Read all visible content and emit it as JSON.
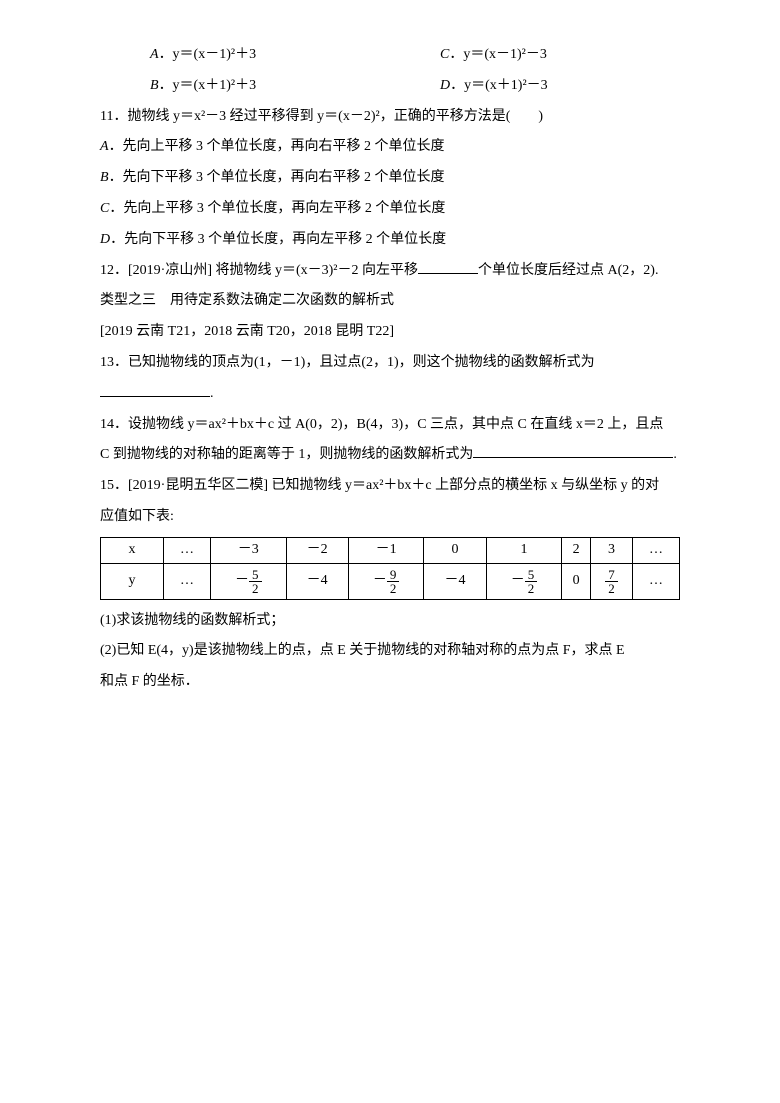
{
  "q10": {
    "optA_label": "A",
    "optA_text": "．y＝(x－1)²＋3",
    "optB_label": "B",
    "optB_text": "．y＝(x＋1)²＋3",
    "optC_label": "C",
    "optC_text": "．y＝(x－1)²－3",
    "optD_label": "D",
    "optD_text": "．y＝(x＋1)²－3"
  },
  "q11": {
    "stem": "11．抛物线 y＝x²－3 经过平移得到 y＝(x－2)²，正确的平移方法是(　　)",
    "optA_label": "A",
    "optA_text": "．先向上平移 3 个单位长度，再向右平移 2 个单位长度",
    "optB_label": "B",
    "optB_text": "．先向下平移 3 个单位长度，再向右平移 2 个单位长度",
    "optC_label": "C",
    "optC_text": "．先向上平移 3 个单位长度，再向左平移 2 个单位长度",
    "optD_label": "D",
    "optD_text": "．先向下平移 3 个单位长度，再向左平移 2 个单位长度"
  },
  "q12": {
    "part1": "12．[2019·凉山州]  将抛物线 y＝(x－3)²－2 向左平移",
    "part2": "个单位长度后经过点 A(2，2)."
  },
  "type3": {
    "title": "类型之三　用待定系数法确定二次函数的解析式",
    "refs": "[2019 云南 T21，2018 云南 T20，2018 昆明 T22]"
  },
  "q13": {
    "part1": "13．已知抛物线的顶点为(1，－1)，且过点(2，1)，则这个抛物线的函数解析式为",
    "part2": "."
  },
  "q14": {
    "line1": "14．设抛物线 y＝ax²＋bx＋c 过 A(0，2)，B(4，3)，C 三点，其中点 C 在直线 x＝2 上，且点",
    "line2a": "C 到抛物线的对称轴的距离等于 1，则抛物线的函数解析式为",
    "line2b": "."
  },
  "q15": {
    "line1": "15．[2019·昆明五华区二模]  已知抛物线 y＝ax²＋bx＋c 上部分点的横坐标 x 与纵坐标 y 的对",
    "line2": "应值如下表:",
    "part1": "(1)求该抛物线的函数解析式；",
    "part2a": "(2)已知 E(4，y)是该抛物线上的点，点 E 关于抛物线的对称轴对称的点为点 F，求点 E",
    "part2b": "和点 F 的坐标．"
  },
  "table": {
    "row1": [
      "x",
      "…",
      "－3",
      "－2",
      "－1",
      "0",
      "1",
      "2",
      "3",
      "…"
    ],
    "row2_head": "y",
    "row2_ell": "…",
    "v0_num": "5",
    "v0_den": "2",
    "v1": "－4",
    "v2_num": "9",
    "v2_den": "2",
    "v3": "－4",
    "v4_num": "5",
    "v4_den": "2",
    "v5": "0",
    "v6_num": "7",
    "v6_den": "2"
  }
}
